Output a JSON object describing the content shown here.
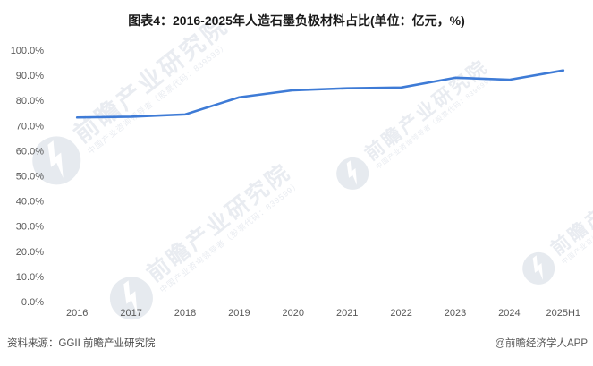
{
  "title": "图表4：2016-2025年人造石墨负极材料占比(单位：亿元，%)",
  "footer": {
    "source": "资料来源：GGII 前瞻产业研究院",
    "credit": "@前瞻经济学人APP"
  },
  "watermark": {
    "brand": "前瞻产业研究院",
    "subtext": "中国产业咨询领导者（股票代码：839599）"
  },
  "colors": {
    "line": "#3e7bd6",
    "axis": "#d9d9d9",
    "tick_text": "#595959",
    "title_text": "#1a1a1a",
    "watermark": "#e9ecf1"
  },
  "chart_data": {
    "type": "line",
    "title": "图表4：2016-2025年人造石墨负极材料占比(单位：亿元，%)",
    "categories": [
      "2016",
      "2017",
      "2018",
      "2019",
      "2020",
      "2021",
      "2022",
      "2023",
      "2024",
      "2025H1"
    ],
    "values": [
      73.4,
      73.7,
      74.6,
      81.4,
      84.2,
      85.0,
      85.3,
      89.2,
      88.4,
      92.1
    ],
    "series_name": "人造石墨负极材料占比",
    "xlabel": "",
    "ylabel": "",
    "ylim": [
      0,
      100
    ],
    "ytick_step": 10,
    "ytick_labels": [
      "100.0%",
      "90.0%",
      "80.0%",
      "70.0%",
      "60.0%",
      "50.0%",
      "40.0%",
      "30.0%",
      "20.0%",
      "10.0%",
      "0.0%"
    ],
    "grid": false,
    "legend": false
  }
}
